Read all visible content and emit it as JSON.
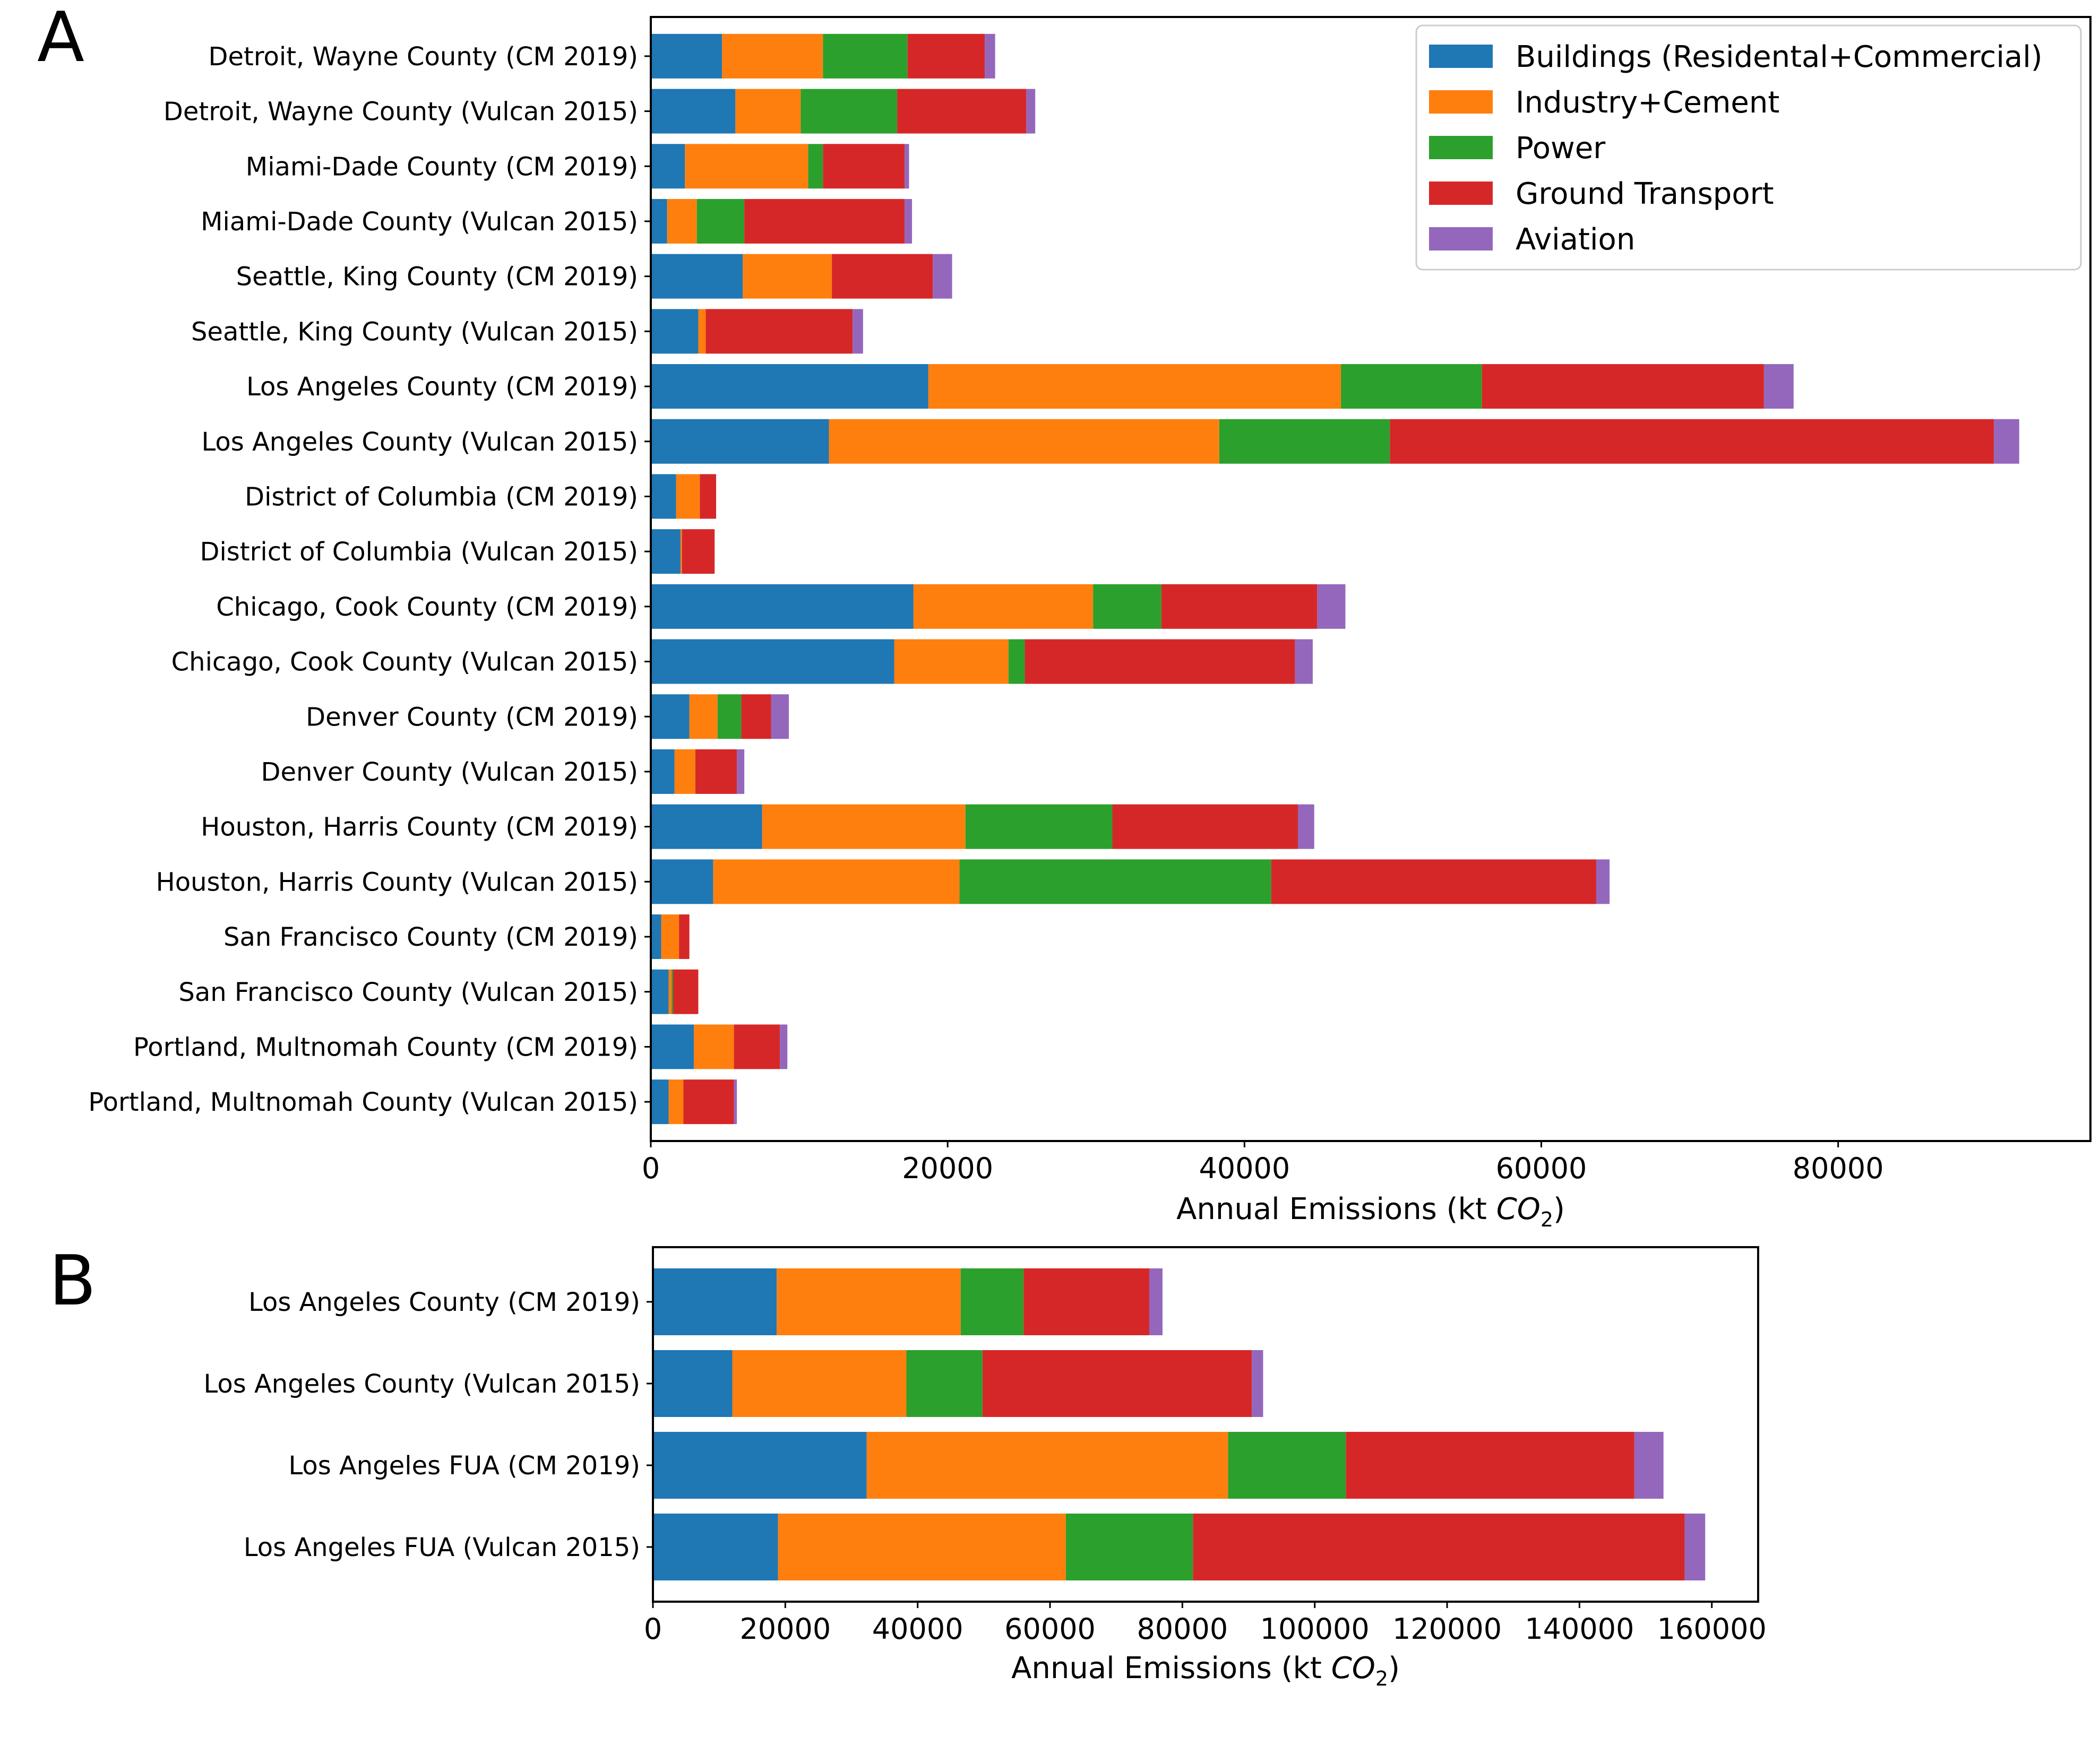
{
  "series_names": [
    "Buildings (Residental+Commercial)",
    "Industry+Cement",
    "Power",
    "Ground Transport",
    "Aviation"
  ],
  "colors": {
    "Buildings": "#1f77b4",
    "Industry": "#ff7f0e",
    "Power": "#2ca02c",
    "Transport": "#d62728",
    "Aviation": "#9467bd"
  },
  "chart_data": [
    {
      "panel": "A",
      "type": "bar",
      "orientation": "horizontal",
      "stacked": true,
      "xlabel_prefix": "Annual Emissions (kt ",
      "xlabel_main": "CO",
      "xlabel_sub": "2",
      "xlabel_suffix": ")",
      "xlim": [
        0,
        97000
      ],
      "xticks": [
        0,
        20000,
        40000,
        60000,
        80000
      ],
      "legend": "top-right",
      "categories": [
        "Detroit, Wayne County (CM 2019)",
        "Detroit, Wayne County (Vulcan 2015)",
        "Miami-Dade County (CM 2019)",
        "Miami-Dade County (Vulcan 2015)",
        "Seattle, King County (CM 2019)",
        "Seattle, King County (Vulcan 2015)",
        "Los Angeles County (CM 2019)",
        "Los Angeles County (Vulcan 2015)",
        "District of Columbia (CM 2019)",
        "District of Columbia (Vulcan 2015)",
        "Chicago, Cook County (CM 2019)",
        "Chicago, Cook County (Vulcan 2015)",
        "Denver County (CM 2019)",
        "Denver County (Vulcan 2015)",
        "Houston, Harris County (CM 2019)",
        "Houston, Harris County (Vulcan 2015)",
        "San Francisco County (CM 2019)",
        "San Francisco County (Vulcan 2015)",
        "Portland, Multnomah County (CM 2019)",
        "Portland, Multnomah County (Vulcan 2015)"
      ],
      "series": [
        {
          "name": "Buildings (Residental+Commercial)",
          "values": [
            4800,
            5700,
            2300,
            1100,
            6200,
            3200,
            18700,
            12000,
            1700,
            2000,
            17700,
            16400,
            2600,
            1600,
            7500,
            4200,
            700,
            1200,
            2900,
            1200
          ]
        },
        {
          "name": "Industry+Cement",
          "values": [
            6800,
            4400,
            8300,
            2000,
            6000,
            500,
            27800,
            26300,
            1600,
            100,
            12100,
            7700,
            1900,
            1400,
            13700,
            16600,
            1200,
            200,
            2700,
            1000
          ]
        },
        {
          "name": "Power",
          "values": [
            5700,
            6500,
            1000,
            3200,
            0,
            0,
            9500,
            11500,
            0,
            0,
            4600,
            1100,
            1600,
            0,
            9900,
            21000,
            0,
            100,
            0,
            0
          ]
        },
        {
          "name": "Ground Transport",
          "values": [
            5200,
            8700,
            5500,
            10800,
            6800,
            9900,
            19000,
            40700,
            1100,
            2200,
            10500,
            18200,
            2000,
            2800,
            12500,
            21900,
            700,
            1700,
            3100,
            3400
          ]
        },
        {
          "name": "Aviation",
          "values": [
            700,
            600,
            300,
            500,
            1300,
            700,
            2000,
            1700,
            0,
            0,
            1900,
            1200,
            1200,
            500,
            1100,
            900,
            0,
            0,
            500,
            200
          ]
        }
      ]
    },
    {
      "panel": "B",
      "type": "bar",
      "orientation": "horizontal",
      "stacked": true,
      "xlabel_prefix": "Annual Emissions (kt ",
      "xlabel_main": "CO",
      "xlabel_sub": "2",
      "xlabel_suffix": ")",
      "xlim": [
        0,
        167000
      ],
      "xticks": [
        0,
        20000,
        40000,
        60000,
        80000,
        100000,
        120000,
        140000,
        160000
      ],
      "categories": [
        "Los Angeles County (CM 2019)",
        "Los Angeles County (Vulcan 2015)",
        "Los Angeles FUA (CM 2019)",
        "Los Angeles FUA  (Vulcan 2015)"
      ],
      "series": [
        {
          "name": "Buildings (Residental+Commercial)",
          "values": [
            18700,
            12000,
            32300,
            18900
          ]
        },
        {
          "name": "Industry+Cement",
          "values": [
            27800,
            26300,
            54600,
            43500
          ]
        },
        {
          "name": "Power",
          "values": [
            9500,
            11500,
            17800,
            19200
          ]
        },
        {
          "name": "Ground Transport",
          "values": [
            19000,
            40700,
            43600,
            74300
          ]
        },
        {
          "name": "Aviation",
          "values": [
            2000,
            1700,
            4400,
            3100
          ]
        }
      ]
    }
  ]
}
